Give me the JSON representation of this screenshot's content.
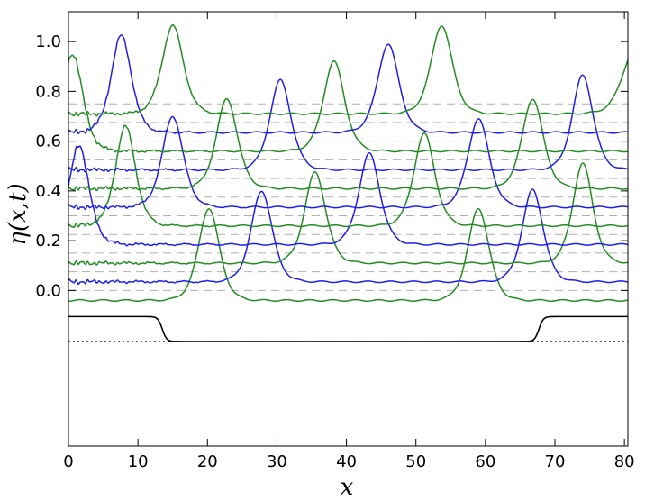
{
  "chart_data": {
    "type": "line",
    "xlabel": "x",
    "ylabel": "η(x,t)",
    "xlim": [
      0,
      80.5
    ],
    "ylim": [
      -0.625,
      1.12
    ],
    "xticks": [
      0,
      10,
      20,
      30,
      40,
      50,
      60,
      70,
      80
    ],
    "xtick_labels": [
      "0",
      "10",
      "20",
      "30",
      "40",
      "50",
      "60",
      "70",
      "80"
    ],
    "yticks": [
      0.0,
      0.2,
      0.4,
      0.6,
      0.8,
      1.0
    ],
    "ytick_labels": [
      "0.0",
      "0.2",
      "0.4",
      "0.6",
      "0.8",
      "1.0"
    ],
    "colors": {
      "blue": "#1f1fe6",
      "green": "#228b22",
      "black": "#000000",
      "grid": "#b0b0b0"
    },
    "baseline_offsets": [
      0.0,
      0.075,
      0.15,
      0.225,
      0.3,
      0.375,
      0.45,
      0.525,
      0.6,
      0.675,
      0.75
    ],
    "series": [
      {
        "color": "green",
        "base": -0.04,
        "peaks": [
          [
            20.2,
            0.37
          ],
          [
            59.0,
            0.37
          ]
        ]
      },
      {
        "color": "blue",
        "base": 0.035,
        "peaks": [
          [
            27.8,
            0.365
          ],
          [
            66.8,
            0.37
          ]
        ],
        "left_noise": true
      },
      {
        "color": "green",
        "base": 0.11,
        "peaks": [
          [
            35.5,
            0.365
          ],
          [
            74.0,
            0.4
          ]
        ],
        "left_noise": true
      },
      {
        "color": "blue",
        "base": 0.185,
        "peaks": [
          [
            43.3,
            0.365
          ],
          [
            1.5,
            0.4
          ]
        ],
        "left_noise": true
      },
      {
        "color": "green",
        "base": 0.26,
        "peaks": [
          [
            51.2,
            0.37
          ],
          [
            8.2,
            0.4
          ]
        ],
        "left_noise": true
      },
      {
        "color": "blue",
        "base": 0.335,
        "peaks": [
          [
            59.0,
            0.355
          ],
          [
            15.0,
            0.365
          ]
        ],
        "left_noise": true
      },
      {
        "color": "green",
        "base": 0.41,
        "peaks": [
          [
            66.8,
            0.36
          ],
          [
            22.8,
            0.36
          ]
        ],
        "left_noise": true
      },
      {
        "color": "blue",
        "base": 0.485,
        "peaks": [
          [
            74.0,
            0.38
          ],
          [
            30.5,
            0.36
          ]
        ],
        "left_noise": true
      },
      {
        "color": "green",
        "base": 0.56,
        "peaks": [
          [
            38.2,
            0.36
          ],
          [
            0.6,
            0.39
          ]
        ],
        "left_noise": true
      },
      {
        "color": "blue",
        "base": 0.635,
        "peaks": [
          [
            46.0,
            0.355
          ],
          [
            7.6,
            0.39
          ]
        ],
        "left_noise": true
      },
      {
        "color": "green",
        "base": 0.71,
        "peaks": [
          [
            53.7,
            0.355
          ],
          [
            15.0,
            0.355
          ],
          [
            81.5,
            0.26
          ]
        ],
        "left_noise": true
      }
    ],
    "bathymetry": {
      "upper": -0.105,
      "lower": -0.205,
      "step_down_x": 13.5,
      "step_up_x": 67.7,
      "dotted_level": -0.205
    }
  }
}
